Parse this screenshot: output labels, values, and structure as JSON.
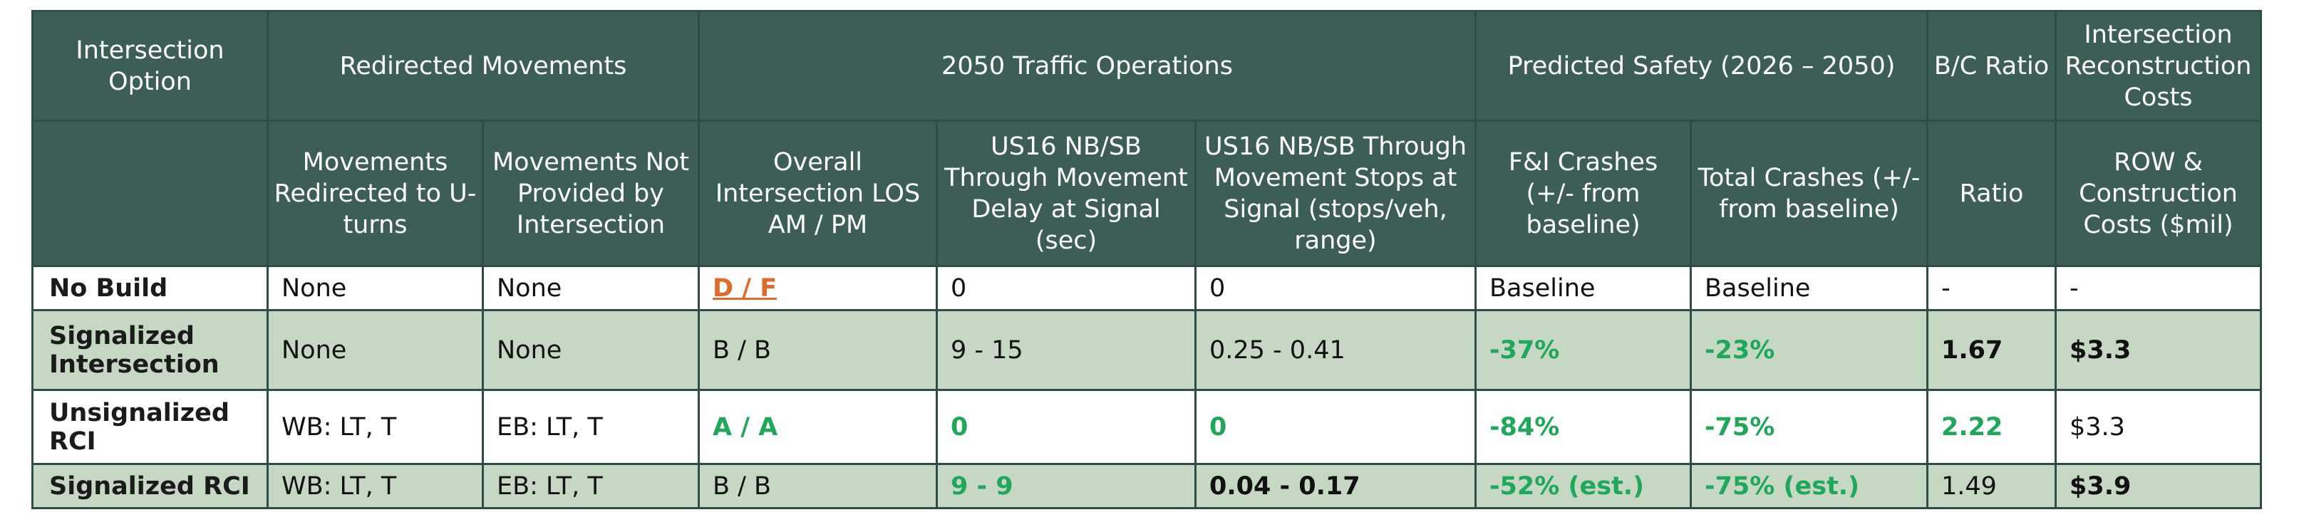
{
  "header": {
    "option": "Intersection Option",
    "redirected": "Redirected Movements",
    "traffic": "2050 Traffic Operations",
    "safety": "Predicted Safety (2026 – 2050)",
    "bc": "B/C Ratio",
    "costs": "Intersection Reconstruction Costs"
  },
  "subheader": {
    "redirected_uturns": "Movements Redirected to U-turns",
    "not_provided": "Movements Not Provided by Intersection",
    "los": "Overall Intersection LOS AM / PM",
    "delay": "US16 NB/SB Through Movement Delay at Signal (sec)",
    "stops": "US16 NB/SB Through Movement Stops at Signal (stops/veh, range)",
    "fi_crashes": "F&I Crashes (+/- from baseline)",
    "total_crashes": "Total Crashes (+/- from baseline)",
    "ratio": "Ratio",
    "row_costs": "ROW & Construction Costs ($mil)"
  },
  "rows": [
    {
      "option": "No Build",
      "redirected": "None",
      "not_provided": "None",
      "los": "D / F",
      "delay": "0",
      "stops": "0",
      "fi": "Baseline",
      "total": "Baseline",
      "ratio": "-",
      "cost": "-"
    },
    {
      "option": "Signalized Intersection",
      "redirected": "None",
      "not_provided": "None",
      "los": "B / B",
      "delay": "9 - 15",
      "stops": "0.25 - 0.41",
      "fi": "-37%",
      "total": "-23%",
      "ratio": "1.67",
      "cost": "$3.3"
    },
    {
      "option": "Unsignalized RCI",
      "redirected": "WB: LT, T",
      "not_provided": "EB: LT, T",
      "los": "A / A",
      "delay": "0",
      "stops": "0",
      "fi": "-84%",
      "total": "-75%",
      "ratio": "2.22",
      "cost": "$3.3"
    },
    {
      "option": "Signalized RCI",
      "redirected": "WB: LT, T",
      "not_provided": "EB: LT, T",
      "los": "B / B",
      "delay": "9 - 9",
      "stops": "0.04 - 0.17",
      "fi": "-52% (est.)",
      "total": "-75% (est.)",
      "ratio": "1.49",
      "cost": "$3.9"
    }
  ],
  "colors": {
    "header_bg": "#3d5e57",
    "alt_row_bg": "#c6d8c4",
    "highlight_good": "#1fa85a",
    "highlight_bad": "#e06a2a"
  }
}
